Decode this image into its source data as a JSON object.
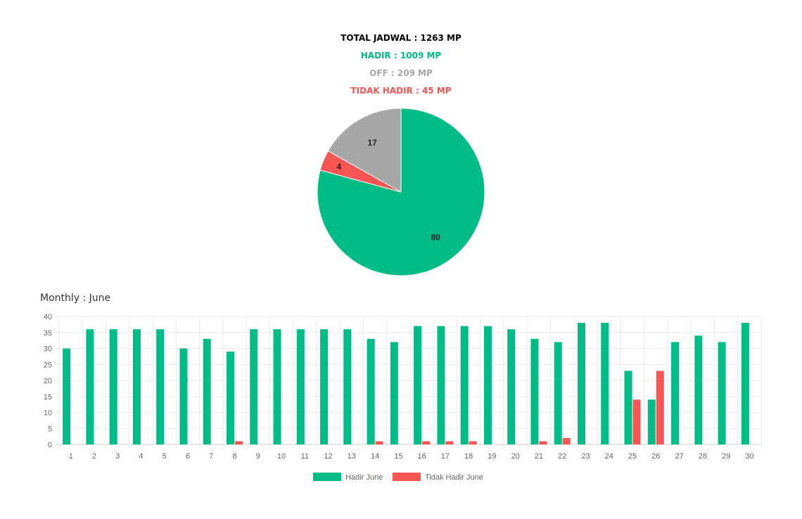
{
  "summary": {
    "total": "TOTAL JADWAL : 1263 MP",
    "hadir": "HADIR : 1009 MP",
    "off": "OFF : 209 MP",
    "tidak_hadir": "TIDAK HADIR : 45 MP"
  },
  "colors": {
    "hadir": "#00bc87",
    "off": "#a6a6a6",
    "tidak_hadir": "#f75454",
    "total": "#000000"
  },
  "monthly": {
    "title": "Monthly : June"
  },
  "chart_data": [
    {
      "type": "pie",
      "slices": [
        {
          "label": "Hadir",
          "value": 80,
          "color": "#00bc87"
        },
        {
          "label": "Tidak Hadir",
          "value": 4,
          "color": "#f75454"
        },
        {
          "label": "Off",
          "value": 17,
          "color": "#a6a6a6"
        }
      ],
      "data_labels": [
        "80",
        "4",
        "17"
      ]
    },
    {
      "type": "bar",
      "categories": [
        "1",
        "2",
        "3",
        "4",
        "5",
        "6",
        "7",
        "8",
        "9",
        "10",
        "11",
        "12",
        "13",
        "14",
        "15",
        "16",
        "17",
        "18",
        "19",
        "20",
        "21",
        "22",
        "23",
        "24",
        "25",
        "26",
        "27",
        "28",
        "29",
        "30"
      ],
      "series": [
        {
          "name": "Hadir June",
          "color": "#00bc87",
          "values": [
            30,
            36,
            36,
            36,
            36,
            30,
            33,
            29,
            36,
            36,
            36,
            36,
            36,
            33,
            32,
            37,
            37,
            37,
            37,
            36,
            33,
            32,
            38,
            38,
            23,
            14,
            32,
            34,
            32,
            38
          ]
        },
        {
          "name": "Tidak Hadir June",
          "color": "#f75454",
          "values": [
            0,
            0,
            0,
            0,
            0,
            0,
            0,
            1,
            0,
            0,
            0,
            0,
            0,
            1,
            0,
            1,
            1,
            1,
            0,
            0,
            1,
            2,
            0,
            0,
            14,
            23,
            0,
            0,
            0,
            0
          ]
        }
      ],
      "ylim": [
        0,
        40
      ],
      "yticks": [
        0,
        5,
        10,
        15,
        20,
        25,
        30,
        35,
        40
      ],
      "grid": true,
      "legend": "bottom"
    }
  ]
}
